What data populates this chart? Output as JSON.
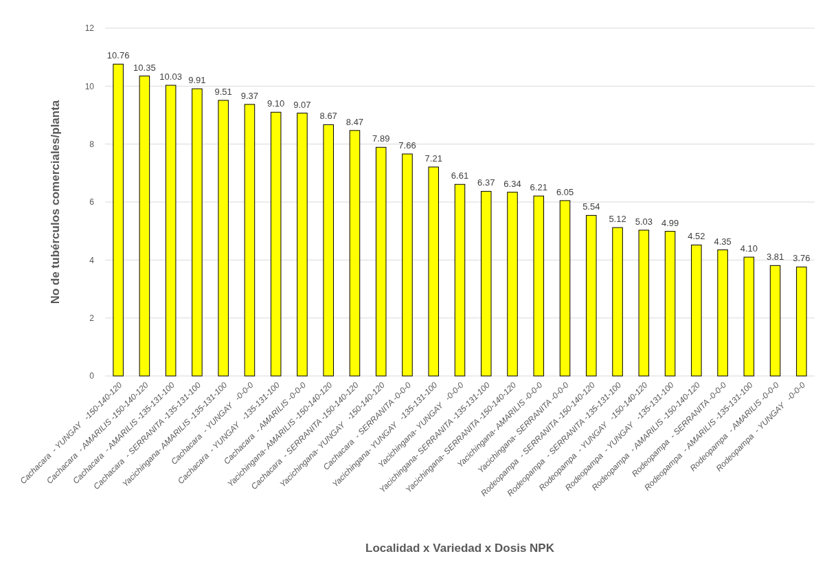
{
  "chart_data": {
    "type": "bar",
    "xlabel": "Localidad x Variedad x Dosis NPK",
    "ylabel": "No de tubérculos comerciales/planta",
    "categories": [
      "Cachacara  - YUNGAY   -150-140-120",
      "Cachacara  - AMARILIS -150-140-120",
      "Cachacara  - AMARILIS -135-131-100",
      "Cachacara  - SERRANITA -135-131-100",
      "Yacichingana- AMARILIS -135-131-100",
      "Cachacara  - YUNGAY   -0-0-0",
      "Cachacara  - YUNGAY   -135-131-100",
      "Cachacara  - AMARILIS -0-0-0",
      "Yacichingana- AMARILIS -150-140-120",
      "Cachacara  - SERRANITA -150-140-120",
      "Yacichingana- YUNGAY   -150-140-120",
      "Cachacara  - SERRANITA -0-0-0",
      "Yacichingana- YUNGAY   -135-131-100",
      "Yacichingana- YUNGAY   -0-0-0",
      "Yacichingana- SERRANITA -135-131-100",
      "Yacichingana- SERRANITA -150-140-120",
      "Yacichingana- AMARILIS -0-0-0",
      "Yacichingana- SERRANITA -0-0-0",
      "Rodeopampa  - SERRANITA -150-140-120",
      "Rodeopampa  - SERRANITA -135-131-100",
      "Rodeopampa  - YUNGAY   -150-140-120",
      "Rodeopampa  - YUNGAY   -135-131-100",
      "Rodeopampa  - AMARILIS -150-140-120",
      "Rodeopampa  - SERRANITA -0-0-0",
      "Rodeopampa  - AMARILIS -135-131-100",
      "Rodeopampa  - AMARILIS -0-0-0",
      "Rodeopampa  - YUNGAY   -0-0-0"
    ],
    "values": [
      10.76,
      10.35,
      10.03,
      9.91,
      9.51,
      9.37,
      9.1,
      9.07,
      8.67,
      8.47,
      7.89,
      7.66,
      7.21,
      6.61,
      6.37,
      6.34,
      6.21,
      6.05,
      5.54,
      5.12,
      5.03,
      4.99,
      4.52,
      4.35,
      4.1,
      3.81,
      3.76
    ],
    "value_labels": [
      "10.76",
      "10.35",
      "10.03",
      "9.91",
      "9.51",
      "9.37",
      "9.10",
      "9.07",
      "8.67",
      "8.47",
      "7.89",
      "7.66",
      "7.21",
      "6.61",
      "6.37",
      "6.34",
      "6.21",
      "6.05",
      "5.54",
      "5.12",
      "5.03",
      "4.99",
      "4.52",
      "4.35",
      "4.10",
      "3.81",
      "3.76"
    ],
    "color": "#ffff00",
    "ylim": [
      0,
      12
    ],
    "yticks": [
      0,
      2,
      4,
      6,
      8,
      10,
      12
    ],
    "grid": "y"
  }
}
